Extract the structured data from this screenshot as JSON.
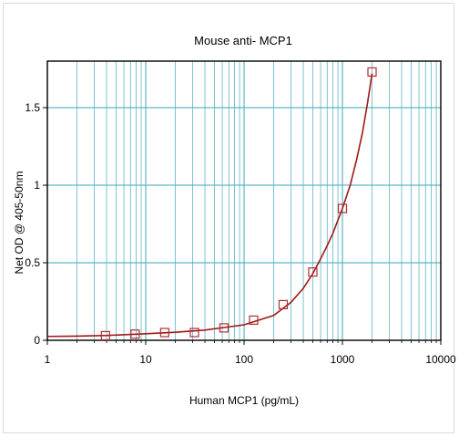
{
  "chart_data": {
    "type": "scatter",
    "title": "Mouse anti- MCP1",
    "xlabel": "Human MCP1 (pg/mL)",
    "ylabel": "Net OD @ 405-50nm",
    "x_scale": "log",
    "xlim": [
      1,
      10000
    ],
    "ylim": [
      0,
      1.8
    ],
    "x_tick_labels": [
      "1",
      "10",
      "100",
      "1000",
      "10000"
    ],
    "y_tick_labels": [
      "0",
      "0.5",
      "1",
      "1.5"
    ],
    "y_tick_values": [
      0,
      0.5,
      1,
      1.5
    ],
    "grid": true,
    "legend": "none",
    "series": [
      {
        "marker": "square",
        "x": [
          3.9,
          7.8,
          15.6,
          31.3,
          62.5,
          125,
          250,
          500,
          1000,
          2000
        ],
        "y": [
          0.03,
          0.04,
          0.05,
          0.05,
          0.08,
          0.13,
          0.23,
          0.44,
          0.85,
          1.73
        ]
      }
    ],
    "fit_curve": {
      "type": "exponential",
      "x": [
        1,
        2,
        4,
        10,
        20,
        40,
        100,
        200,
        300,
        400,
        500,
        600,
        700,
        800,
        1000,
        1200,
        1400,
        1600,
        1800,
        2000
      ],
      "y": [
        0.025,
        0.027,
        0.031,
        0.042,
        0.052,
        0.066,
        0.1,
        0.16,
        0.245,
        0.335,
        0.43,
        0.525,
        0.61,
        0.69,
        0.85,
        1.0,
        1.17,
        1.34,
        1.53,
        1.72
      ]
    },
    "colors": {
      "marker": "#b03030",
      "curve": "#a01818",
      "grid": "#5fb4c8",
      "axes": "#000000"
    }
  }
}
